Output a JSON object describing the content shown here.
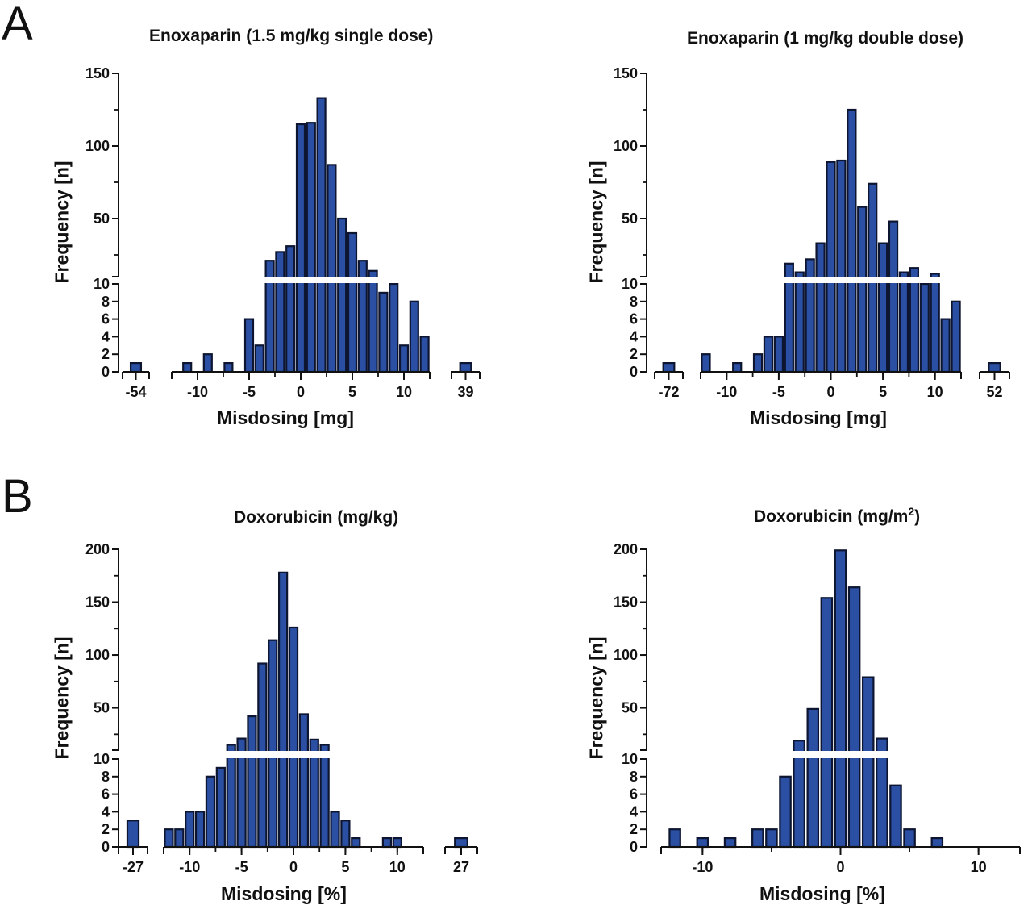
{
  "panels": {
    "a": "A",
    "b": "B"
  },
  "colors": {
    "bar_fill": "#2a4fa3",
    "bar_stroke": "#0d1530",
    "axis": "#111111"
  },
  "chart_data": [
    {
      "type": "bar",
      "title": "Enoxaparin (1.5 mg/kg single dose)",
      "xlabel": "Misdosing [mg]",
      "ylabel": "Frequency [n]",
      "y_axis": "broken",
      "ylim_lower": [
        0,
        10
      ],
      "ylim_upper": [
        10,
        150
      ],
      "yticks_lower": [
        "0",
        "2",
        "4",
        "6",
        "8",
        "10"
      ],
      "yticks_upper": [
        "50",
        "100",
        "150"
      ],
      "x_segments": [
        {
          "xlim": [
            -55,
            -53
          ],
          "tick_labels": [
            "-54"
          ],
          "bars": [
            [
              -54,
              1
            ]
          ]
        },
        {
          "xlim": [
            -12.5,
            12.5
          ],
          "tick_labels": [
            "-10",
            "-5",
            "0",
            "5",
            "10"
          ],
          "bars": [
            [
              -11,
              1
            ],
            [
              -9,
              2
            ],
            [
              -7,
              1
            ],
            [
              -5,
              6
            ],
            [
              -4,
              3
            ],
            [
              -3,
              21
            ],
            [
              -2,
              27
            ],
            [
              -1,
              31
            ],
            [
              0,
              115
            ],
            [
              1,
              116
            ],
            [
              2,
              133
            ],
            [
              3,
              87
            ],
            [
              4,
              50
            ],
            [
              5,
              40
            ],
            [
              6,
              21
            ],
            [
              7,
              14
            ],
            [
              8,
              9
            ],
            [
              9,
              10
            ],
            [
              10,
              3
            ],
            [
              11,
              8
            ],
            [
              12,
              4
            ]
          ]
        },
        {
          "xlim": [
            38,
            40
          ],
          "tick_labels": [
            "39"
          ],
          "bars": [
            [
              39,
              1
            ]
          ]
        }
      ]
    },
    {
      "type": "bar",
      "title": "Enoxaparin (1 mg/kg double dose)",
      "xlabel": "Misdosing [mg]",
      "ylabel": "Frequency [n]",
      "y_axis": "broken",
      "ylim_lower": [
        0,
        10
      ],
      "ylim_upper": [
        10,
        150
      ],
      "yticks_lower": [
        "0",
        "2",
        "4",
        "6",
        "8",
        "10"
      ],
      "yticks_upper": [
        "50",
        "100",
        "150"
      ],
      "x_segments": [
        {
          "xlim": [
            -73,
            -71
          ],
          "tick_labels": [
            "-72"
          ],
          "bars": [
            [
              -72,
              1
            ]
          ]
        },
        {
          "xlim": [
            -12.5,
            12.5
          ],
          "tick_labels": [
            "-10",
            "-5",
            "0",
            "5",
            "10"
          ],
          "bars": [
            [
              -12,
              2
            ],
            [
              -9,
              1
            ],
            [
              -7,
              2
            ],
            [
              -6,
              4
            ],
            [
              -5,
              4
            ],
            [
              -4,
              19
            ],
            [
              -3,
              13
            ],
            [
              -2,
              22
            ],
            [
              -1,
              33
            ],
            [
              0,
              89
            ],
            [
              1,
              90
            ],
            [
              2,
              125
            ],
            [
              3,
              58
            ],
            [
              4,
              74
            ],
            [
              5,
              33
            ],
            [
              6,
              48
            ],
            [
              7,
              13
            ],
            [
              8,
              16
            ],
            [
              9,
              10
            ],
            [
              10,
              12
            ],
            [
              11,
              6
            ],
            [
              12,
              8
            ]
          ]
        },
        {
          "xlim": [
            51,
            53
          ],
          "tick_labels": [
            "52"
          ],
          "bars": [
            [
              52,
              1
            ]
          ]
        }
      ]
    },
    {
      "type": "bar",
      "title": "Doxorubicin (mg/kg)",
      "xlabel": "Misdosing [%]",
      "ylabel": "Frequency [n]",
      "y_axis": "broken",
      "ylim_lower": [
        0,
        10
      ],
      "ylim_upper": [
        10,
        200
      ],
      "yticks_lower": [
        "0",
        "2",
        "4",
        "6",
        "8",
        "10"
      ],
      "yticks_upper": [
        "50",
        "100",
        "150",
        "200"
      ],
      "x_segments": [
        {
          "xlim": [
            -28,
            -26
          ],
          "tick_labels": [
            "-27"
          ],
          "bars": [
            [
              -27,
              3
            ]
          ]
        },
        {
          "xlim": [
            -12.5,
            12.5
          ],
          "tick_labels": [
            "-10",
            "-5",
            "0",
            "5",
            "10"
          ],
          "bars": [
            [
              -12,
              2
            ],
            [
              -11,
              2
            ],
            [
              -10,
              4
            ],
            [
              -9,
              4
            ],
            [
              -8,
              8
            ],
            [
              -7,
              9
            ],
            [
              -6,
              15
            ],
            [
              -5,
              21
            ],
            [
              -4,
              42
            ],
            [
              -3,
              92
            ],
            [
              -2,
              114
            ],
            [
              -1,
              178
            ],
            [
              0,
              126
            ],
            [
              1,
              44
            ],
            [
              2,
              20
            ],
            [
              3,
              15
            ],
            [
              4,
              4
            ],
            [
              5,
              3
            ],
            [
              6,
              1
            ],
            [
              9,
              1
            ],
            [
              10,
              1
            ]
          ]
        },
        {
          "xlim": [
            26,
            28
          ],
          "tick_labels": [
            "27"
          ],
          "bars": [
            [
              27,
              1
            ]
          ]
        }
      ]
    },
    {
      "type": "bar",
      "title": "Doxorubicin (mg/m",
      "title_sup": "2",
      "title_end": ")",
      "xlabel": "Misdosing [%]",
      "ylabel": "Frequency [n]",
      "y_axis": "broken",
      "ylim_lower": [
        0,
        10
      ],
      "ylim_upper": [
        10,
        200
      ],
      "yticks_lower": [
        "0",
        "2",
        "4",
        "6",
        "8",
        "10"
      ],
      "yticks_upper": [
        "50",
        "100",
        "150",
        "200"
      ],
      "x_segments": [
        {
          "xlim": [
            -13,
            13
          ],
          "tick_labels": [
            "-10",
            "0",
            "10"
          ],
          "bars": [
            [
              -12,
              2
            ],
            [
              -10,
              1
            ],
            [
              -8,
              1
            ],
            [
              -6,
              2
            ],
            [
              -5,
              2
            ],
            [
              -4,
              8
            ],
            [
              -3,
              19
            ],
            [
              -2,
              49
            ],
            [
              -1,
              154
            ],
            [
              0,
              199
            ],
            [
              1,
              164
            ],
            [
              2,
              79
            ],
            [
              3,
              21
            ],
            [
              4,
              7
            ],
            [
              5,
              2
            ],
            [
              7,
              1
            ]
          ]
        }
      ]
    }
  ]
}
